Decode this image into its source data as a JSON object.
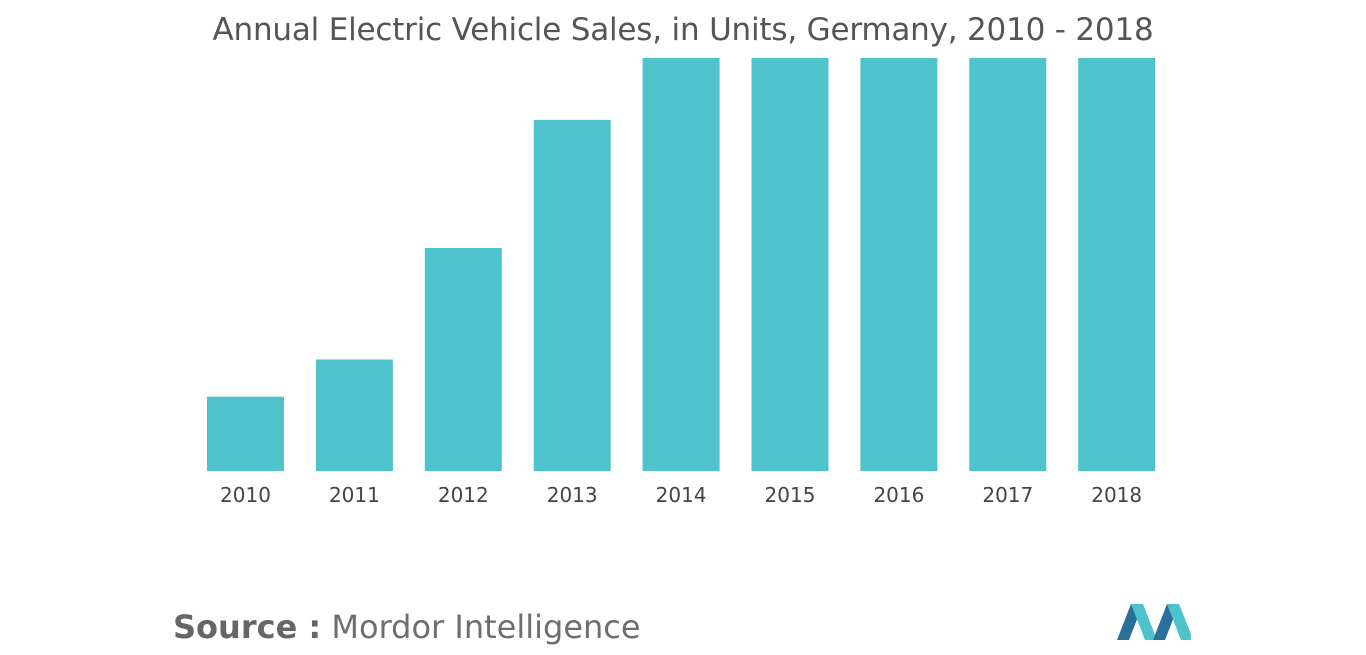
{
  "title": "Annual Electric Vehicle Sales, in Units, Germany, 2010 - 2018",
  "source": {
    "label": "Source :",
    "name": "Mordor Intelligence"
  },
  "colors": {
    "bar": "#4fc3cb",
    "logo_dark": "#2a6f97",
    "logo_light": "#4fc3cb"
  },
  "logo_icon": "mordor-intelligence-logo-icon",
  "chart_data": {
    "type": "bar",
    "title": "Annual Electric Vehicle Sales, in Units, Germany, 2010 - 2018",
    "categories": [
      "2010",
      "2011",
      "2012",
      "2013",
      "2014",
      "2015",
      "2016",
      "2017",
      "2018"
    ],
    "values": [
      18,
      27,
      54,
      85,
      100,
      100,
      100,
      100,
      100
    ],
    "xlabel": "",
    "ylabel": "",
    "ylim": [
      0,
      100
    ],
    "grid": false,
    "legend": "none"
  }
}
